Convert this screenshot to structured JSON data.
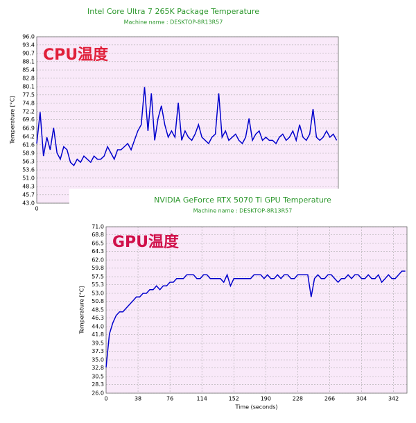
{
  "chart_data": [
    {
      "type": "line",
      "title": "Intel Core Ultra 7 265K Package Temperature",
      "subtitle": "Machine name : DESKTOP-8R13R57",
      "ylabel": "Temperature [°C]",
      "annotation": "CPU温度",
      "color": "#0000cc",
      "grid": true,
      "xlim": [
        0,
        358
      ],
      "xticks": [
        0
      ],
      "ylim": [
        43,
        96
      ],
      "yticks": [
        {
          "value": 96,
          "label": "96.0"
        },
        {
          "value": 93.4,
          "label": "93.4"
        },
        {
          "value": 90.7,
          "label": "90.7"
        },
        {
          "value": 88.1,
          "label": "88.1"
        },
        {
          "value": 85.4,
          "label": "85.4"
        },
        {
          "value": 82.8,
          "label": "82.8"
        },
        {
          "value": 80.1,
          "label": "80.1"
        },
        {
          "value": 77.5,
          "label": "77.5"
        },
        {
          "value": 74.8,
          "label": "74.8"
        },
        {
          "value": 72.2,
          "label": "72.2"
        },
        {
          "value": 69.6,
          "label": "69.6"
        },
        {
          "value": 66.9,
          "label": "66.9"
        },
        {
          "value": 64.2,
          "label": "64.2"
        },
        {
          "value": 61.6,
          "label": "61.6"
        },
        {
          "value": 58.9,
          "label": "58.9"
        },
        {
          "value": 56.3,
          "label": "56.3"
        },
        {
          "value": 53.6,
          "label": "53.6"
        },
        {
          "value": 51,
          "label": "51.0"
        },
        {
          "value": 48.3,
          "label": "48.3"
        },
        {
          "value": 45.7,
          "label": "45.7"
        },
        {
          "value": 43,
          "label": "43.0"
        }
      ],
      "x": [
        0,
        4,
        8,
        12,
        16,
        20,
        24,
        28,
        32,
        36,
        40,
        44,
        48,
        52,
        56,
        60,
        64,
        68,
        72,
        76,
        80,
        84,
        88,
        92,
        96,
        100,
        104,
        108,
        112,
        116,
        120,
        124,
        128,
        132,
        136,
        140,
        144,
        148,
        152,
        156,
        160,
        164,
        168,
        172,
        176,
        180,
        184,
        188,
        192,
        196,
        200,
        204,
        208,
        212,
        216,
        220,
        224,
        228,
        232,
        236,
        240,
        244,
        248,
        252,
        256,
        260,
        264,
        268,
        272,
        276,
        280,
        284,
        288,
        292,
        296,
        300,
        304,
        308,
        312,
        316,
        320,
        324,
        328,
        332,
        336,
        340,
        344,
        348,
        352,
        356
      ],
      "values": [
        62,
        72,
        58,
        64,
        60,
        67,
        59,
        57,
        61,
        60,
        56,
        55,
        57,
        56,
        58,
        57,
        56,
        58,
        57,
        57,
        58,
        61,
        59,
        57,
        60,
        60,
        61,
        62,
        60,
        63,
        66,
        68,
        80,
        66,
        78,
        63,
        70,
        74,
        68,
        64,
        66,
        64,
        75,
        63,
        66,
        64,
        63,
        65,
        68,
        64,
        63,
        62,
        64,
        65,
        78,
        64,
        66,
        63,
        64,
        65,
        63,
        62,
        64,
        70,
        63,
        65,
        66,
        63,
        64,
        63,
        63,
        62,
        64,
        65,
        63,
        64,
        66,
        63,
        68,
        64,
        63,
        65,
        73,
        64,
        63,
        64,
        66,
        64,
        65,
        63
      ]
    },
    {
      "type": "line",
      "title": "NVIDIA GeForce RTX 5070 Ti GPU Temperature",
      "subtitle": "Machine name : DESKTOP-8R13R57",
      "ylabel": "Temperature [°C]",
      "xlabel": "Time (seconds)",
      "annotation": "GPU温度",
      "color": "#0000cc",
      "grid": true,
      "xlim": [
        0,
        358
      ],
      "xticks": [
        0,
        38,
        76,
        114,
        152,
        190,
        228,
        266,
        304,
        342
      ],
      "ylim": [
        26,
        71
      ],
      "yticks": [
        {
          "value": 71,
          "label": "71.0"
        },
        {
          "value": 68.8,
          "label": "68.8"
        },
        {
          "value": 66.5,
          "label": "66.5"
        },
        {
          "value": 64.3,
          "label": "64.3"
        },
        {
          "value": 62,
          "label": "62.0"
        },
        {
          "value": 59.8,
          "label": "59.8"
        },
        {
          "value": 57.5,
          "label": "57.5"
        },
        {
          "value": 55.3,
          "label": "55.3"
        },
        {
          "value": 53,
          "label": "53.0"
        },
        {
          "value": 50.8,
          "label": "50.8"
        },
        {
          "value": 48.5,
          "label": "48.5"
        },
        {
          "value": 46.3,
          "label": "46.3"
        },
        {
          "value": 44,
          "label": "44.0"
        },
        {
          "value": 41.8,
          "label": "41.8"
        },
        {
          "value": 39.5,
          "label": "39.5"
        },
        {
          "value": 37.3,
          "label": "37.3"
        },
        {
          "value": 35,
          "label": "35.0"
        },
        {
          "value": 32.8,
          "label": "32.8"
        },
        {
          "value": 30.5,
          "label": "30.5"
        },
        {
          "value": 28.3,
          "label": "28.3"
        },
        {
          "value": 26,
          "label": "26.0"
        }
      ],
      "x": [
        0,
        4,
        8,
        12,
        16,
        20,
        24,
        28,
        32,
        36,
        40,
        44,
        48,
        52,
        56,
        60,
        64,
        68,
        72,
        76,
        80,
        84,
        88,
        92,
        96,
        100,
        104,
        108,
        112,
        116,
        120,
        124,
        128,
        132,
        136,
        140,
        144,
        148,
        152,
        156,
        160,
        164,
        168,
        172,
        176,
        180,
        184,
        188,
        192,
        196,
        200,
        204,
        208,
        212,
        216,
        220,
        224,
        228,
        232,
        236,
        240,
        244,
        248,
        252,
        256,
        260,
        264,
        268,
        272,
        276,
        280,
        284,
        288,
        292,
        296,
        300,
        304,
        308,
        312,
        316,
        320,
        324,
        328,
        332,
        336,
        340,
        344,
        348,
        352,
        356
      ],
      "values": [
        33,
        42,
        45,
        47,
        48,
        48,
        49,
        50,
        51,
        52,
        52,
        53,
        53,
        54,
        54,
        55,
        54,
        55,
        55,
        56,
        56,
        57,
        57,
        57,
        58,
        58,
        58,
        57,
        57,
        58,
        58,
        57,
        57,
        57,
        57,
        56,
        58,
        55,
        57,
        57,
        57,
        57,
        57,
        57,
        58,
        58,
        58,
        57,
        58,
        57,
        57,
        58,
        57,
        58,
        58,
        57,
        57,
        58,
        58,
        58,
        58,
        52,
        57,
        58,
        57,
        57,
        58,
        58,
        57,
        56,
        57,
        57,
        58,
        57,
        58,
        58,
        57,
        57,
        58,
        57,
        57,
        58,
        56,
        57,
        58,
        57,
        57,
        58,
        59,
        59
      ]
    }
  ]
}
